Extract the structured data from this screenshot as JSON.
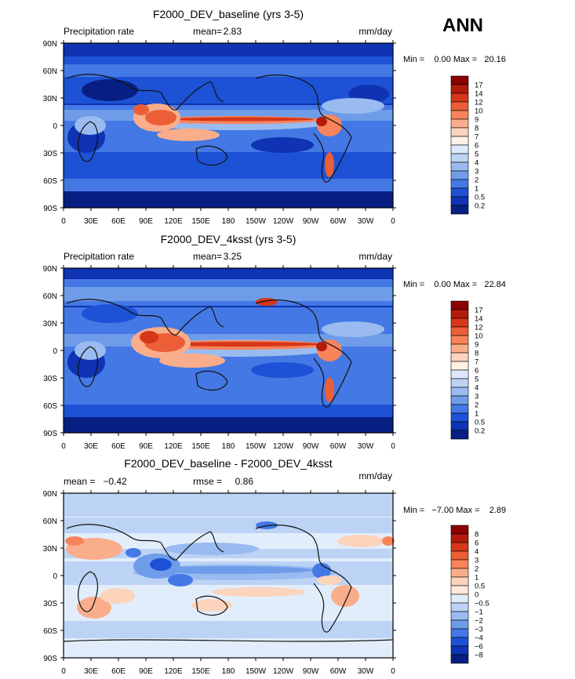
{
  "season": "ANN",
  "panels": [
    {
      "title": "F2000_DEV_baseline (yrs 3-5)",
      "left_label": "Precipitation rate",
      "mid_label": "mean=",
      "mid_value": "2.83",
      "right_label": "mm/day",
      "minmax": "Min =    0.00 Max =   20.16",
      "colorbar": [
        "17",
        "14",
        "12",
        "10",
        "9",
        "8",
        "7",
        "6",
        "5",
        "4",
        "3",
        "2",
        "1",
        "0.5",
        "0.2"
      ],
      "colors": [
        "#8b0000",
        "#b31b0b",
        "#d6361a",
        "#ec5e36",
        "#f7845a",
        "#f9ad8b",
        "#fcd3bb",
        "#fdf1e5",
        "#dde9fa",
        "#bcd3f5",
        "#99bbf0",
        "#6f9ce9",
        "#4478e4",
        "#1d52d6",
        "#0f33b3",
        "#071f82"
      ],
      "chart_data": {
        "type": "heatmap",
        "title": "F2000_DEV_baseline (yrs 3-5)",
        "variable": "Precipitation rate",
        "units": "mm/day",
        "mean": 2.83,
        "min": 0.0,
        "max": 20.16,
        "contour_levels": [
          0.2,
          0.5,
          1,
          2,
          3,
          4,
          5,
          6,
          7,
          8,
          9,
          10,
          12,
          14,
          17
        ],
        "xticks": [
          "0",
          "30E",
          "60E",
          "90E",
          "120E",
          "150E",
          "180",
          "150W",
          "120W",
          "90W",
          "60W",
          "30W",
          "0"
        ],
        "yticks": [
          "90N",
          "60N",
          "30N",
          "0",
          "30S",
          "60S",
          "90S"
        ]
      }
    },
    {
      "title": "F2000_DEV_4ksst (yrs 3-5)",
      "left_label": "Precipitation rate",
      "mid_label": "mean=",
      "mid_value": "3.25",
      "right_label": "mm/day",
      "minmax": "Min =    0.00 Max =   22.84",
      "colorbar": [
        "17",
        "14",
        "12",
        "10",
        "9",
        "8",
        "7",
        "6",
        "5",
        "4",
        "3",
        "2",
        "1",
        "0.5",
        "0.2"
      ],
      "colors": [
        "#8b0000",
        "#b31b0b",
        "#d6361a",
        "#ec5e36",
        "#f7845a",
        "#f9ad8b",
        "#fcd3bb",
        "#fdf1e5",
        "#dde9fa",
        "#bcd3f5",
        "#99bbf0",
        "#6f9ce9",
        "#4478e4",
        "#1d52d6",
        "#0f33b3",
        "#071f82"
      ],
      "chart_data": {
        "type": "heatmap",
        "title": "F2000_DEV_4ksst (yrs 3-5)",
        "variable": "Precipitation rate",
        "units": "mm/day",
        "mean": 3.25,
        "min": 0.0,
        "max": 22.84,
        "contour_levels": [
          0.2,
          0.5,
          1,
          2,
          3,
          4,
          5,
          6,
          7,
          8,
          9,
          10,
          12,
          14,
          17
        ],
        "xticks": [
          "0",
          "30E",
          "60E",
          "90E",
          "120E",
          "150E",
          "180",
          "150W",
          "120W",
          "90W",
          "60W",
          "30W",
          "0"
        ],
        "yticks": [
          "90N",
          "60N",
          "30N",
          "0",
          "30S",
          "60S",
          "90S"
        ]
      }
    },
    {
      "title": "F2000_DEV_baseline - F2000_DEV_4ksst",
      "left_label": "mean =   −0.42",
      "mid_label": "rmse =",
      "mid_value": "0.86",
      "right_label": "mm/day",
      "minmax": "Min =   −7.00 Max =    2.89",
      "colorbar": [
        "8",
        "6",
        "4",
        "3",
        "2",
        "1",
        "0.5",
        "0",
        "−0.5",
        "−1",
        "−2",
        "−3",
        "−4",
        "−6",
        "−8"
      ],
      "colors": [
        "#8b0000",
        "#b31b0b",
        "#d6361a",
        "#ec5e36",
        "#f7845a",
        "#f9ad8b",
        "#fcd3bb",
        "#fdeadb",
        "#e2edfb",
        "#bcd3f5",
        "#99bbf0",
        "#6f9ce9",
        "#4478e4",
        "#1d52d6",
        "#0f33b3",
        "#071f82"
      ],
      "chart_data": {
        "type": "heatmap",
        "title": "F2000_DEV_baseline - F2000_DEV_4ksst",
        "units": "mm/day",
        "mean": -0.42,
        "rmse": 0.86,
        "min": -7.0,
        "max": 2.89,
        "contour_levels": [
          -8,
          -6,
          -4,
          -3,
          -2,
          -1,
          -0.5,
          0,
          0.5,
          1,
          2,
          3,
          4,
          6,
          8
        ],
        "xticks": [
          "0",
          "30E",
          "60E",
          "90E",
          "120E",
          "150E",
          "180",
          "150W",
          "120W",
          "90W",
          "60W",
          "30W",
          "0"
        ],
        "yticks": [
          "90N",
          "60N",
          "30N",
          "0",
          "30S",
          "60S",
          "90S"
        ]
      }
    }
  ]
}
